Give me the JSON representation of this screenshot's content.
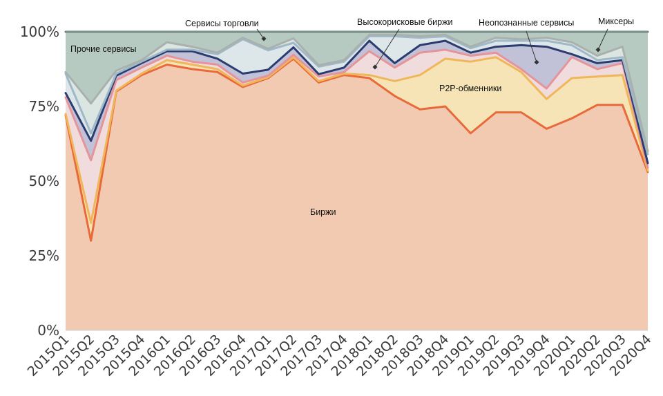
{
  "chart_data": {
    "type": "area",
    "stacked": true,
    "title": "",
    "xlabel": "",
    "ylabel": "",
    "ylim": [
      0,
      100
    ],
    "y_ticks": [
      0,
      25,
      50,
      75,
      100
    ],
    "y_tick_labels": [
      "0%",
      "25%",
      "50%",
      "75%",
      "100%"
    ],
    "grid": false,
    "categories": [
      "2015Q1",
      "2015Q2",
      "2015Q3",
      "2015Q4",
      "2016Q1",
      "2016Q2",
      "2016Q3",
      "2016Q4",
      "2017Q1",
      "2017Q2",
      "2017Q3",
      "2017Q4",
      "2018Q1",
      "2018Q2",
      "2018Q3",
      "2018Q4",
      "2019Q1",
      "2019Q2",
      "2019Q3",
      "2019Q4",
      "2020Q1",
      "2020Q2",
      "2020Q3",
      "2020Q4"
    ],
    "series": [
      {
        "name": "Биржи",
        "fill": "#f2cab2",
        "line": "#e8693a",
        "values": [
          72,
          30,
          80,
          85.5,
          89,
          87.5,
          86.5,
          81.5,
          84.5,
          91,
          83,
          85.5,
          84.5,
          78.5,
          74,
          75,
          66,
          73,
          73,
          67.5,
          71,
          75.5,
          75.5,
          53
        ]
      },
      {
        "name": "P2P-обменники",
        "fill": "#f6e3b6",
        "line": "#f0b65a",
        "values": [
          0.5,
          6,
          0.3,
          0.5,
          1.5,
          1.5,
          1,
          0.5,
          0.3,
          0.5,
          0.5,
          0.5,
          1,
          5,
          11.5,
          16,
          24,
          18.5,
          13.5,
          10,
          13.5,
          9.5,
          10,
          0.5
        ]
      },
      {
        "name": "Высокорисковые биржи",
        "fill": "#f0dcdd",
        "line": "#e5949a",
        "values": [
          5.5,
          21,
          3.5,
          2,
          1.5,
          1,
          1.5,
          1,
          0.5,
          0.8,
          1.5,
          0.5,
          8,
          4.5,
          7.5,
          3,
          2,
          1.5,
          1,
          3.5,
          7,
          2.5,
          4,
          1
        ]
      },
      {
        "name": "Неопознанные сервисы",
        "fill": "#c1c2d8",
        "line": "#2c3c70",
        "values": [
          1.5,
          6.5,
          1.5,
          1.5,
          1.5,
          3.5,
          2,
          3,
          2,
          2.5,
          0.8,
          1.5,
          3.5,
          1.5,
          2.5,
          3,
          1,
          2,
          8,
          14,
          1,
          2,
          1,
          1.5
        ]
      },
      {
        "name": "Сервисы торговли",
        "fill": "#dde7ea",
        "line": "#9fb9c8",
        "values": [
          6.5,
          2.5,
          0.7,
          0.5,
          0.5,
          0.5,
          1.5,
          11.5,
          6.5,
          1.5,
          2.5,
          2,
          1.5,
          9,
          2.5,
          1.5,
          1.5,
          2,
          1.5,
          2,
          3,
          1,
          1,
          3
        ]
      },
      {
        "name": "Миксеры",
        "fill": "#dbe5e1",
        "line": "#a9b0ae",
        "values": [
          0.5,
          10,
          1,
          0.5,
          2.5,
          1,
          0.5,
          0.5,
          0.5,
          1.5,
          0.5,
          0.5,
          0.5,
          0.5,
          0.5,
          0.5,
          0.5,
          1,
          0.5,
          1,
          1,
          1.5,
          3.5,
          1
        ]
      },
      {
        "name": "Прочие сервисы",
        "fill": "#b7cac2",
        "line": "#5c7d70",
        "values": [
          13.5,
          24,
          13,
          9.5,
          3.5,
          5,
          7,
          2,
          5.7,
          2.2,
          11.2,
          9.5,
          1,
          1,
          1.5,
          1,
          5,
          2,
          2.5,
          2,
          3.5,
          8,
          5,
          40
        ]
      }
    ],
    "annotations": [
      {
        "text": "Прочие сервисы"
      },
      {
        "text": "Сервисы торговли"
      },
      {
        "text": "Высокорисковые биржи"
      },
      {
        "text": "Неопознанные сервисы"
      },
      {
        "text": "Миксеры"
      },
      {
        "text": "P2P-обменники"
      },
      {
        "text": "Биржи"
      }
    ]
  }
}
